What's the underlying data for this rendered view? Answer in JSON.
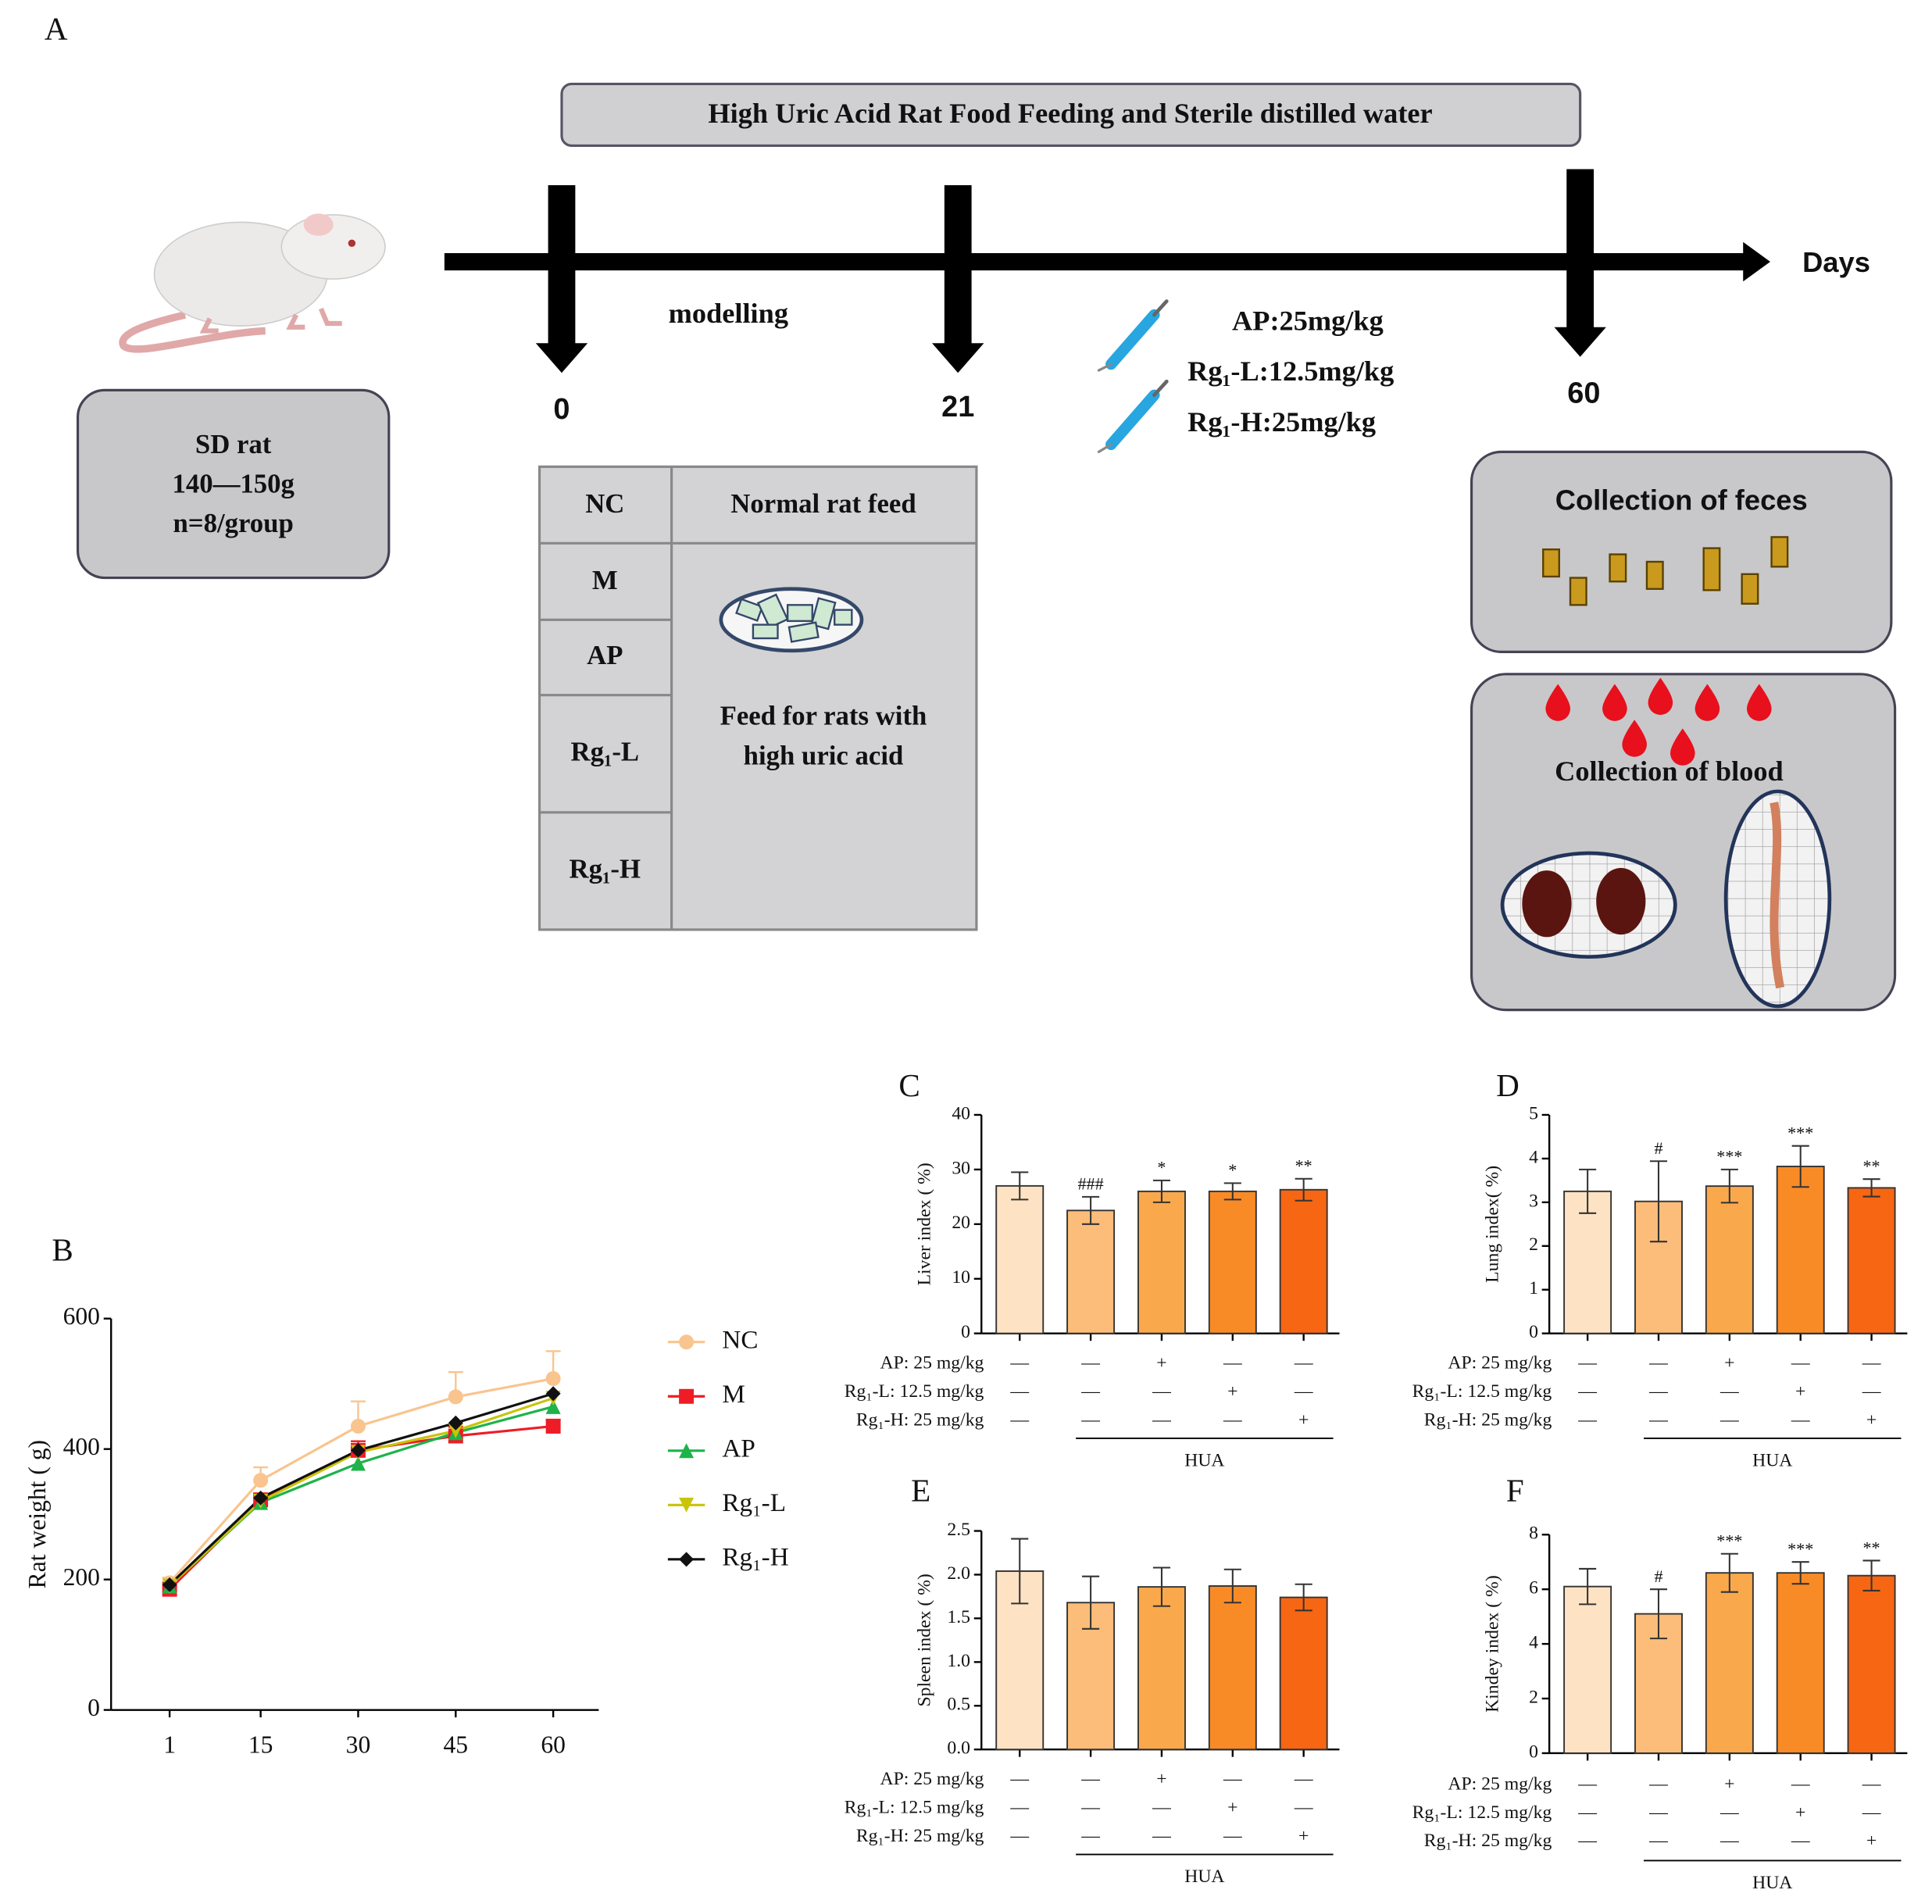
{
  "diagram": {
    "panel_label": "A",
    "banner": "High Uric Acid Rat Food Feeding and Sterile distilled water",
    "axis_label": "Days",
    "timepoints": [
      0,
      21,
      60
    ],
    "modelling": "modelling",
    "rat_box": [
      "SD rat",
      "140—150g",
      "n=8/group"
    ],
    "doses": [
      "AP:25mg/kg",
      "Rg₁-L:12.5mg/kg",
      "Rg₁-H:25mg/kg"
    ],
    "table": {
      "groups": [
        "NC",
        "M",
        "AP",
        "Rg₁-L",
        "Rg₁-H"
      ],
      "normal_feed": "Normal rat feed",
      "high_feed": [
        "Feed for rats with",
        "high uric acid"
      ]
    },
    "feces": "Collection of feces",
    "blood": "Collection of blood"
  },
  "chart_data": [
    {
      "type": "line",
      "panel_label": "B",
      "ylabel": "Rat weight ( g)",
      "x": [
        1,
        15,
        30,
        45,
        60
      ],
      "xlim": [
        -8,
        67
      ],
      "xticks": [
        1,
        15,
        30,
        45,
        60
      ],
      "ylim": [
        0,
        600
      ],
      "yticks": [
        0,
        200,
        400,
        600
      ],
      "series": [
        {
          "name": "NC",
          "color": "#f9c48e",
          "marker": "circle",
          "values": [
            195,
            352,
            435,
            480,
            508
          ],
          "errors": [
            8,
            20,
            38,
            38,
            42
          ]
        },
        {
          "name": "M",
          "color": "#ee1c25",
          "marker": "square",
          "values": [
            185,
            322,
            398,
            420,
            435
          ],
          "errors": [
            4,
            10,
            14,
            14,
            10
          ]
        },
        {
          "name": "AP",
          "color": "#1db34a",
          "marker": "triangle-up",
          "values": [
            190,
            318,
            378,
            425,
            465
          ]
        },
        {
          "name": "Rg₁-L",
          "color": "#c9c30a",
          "marker": "triangle-down",
          "values": [
            190,
            320,
            395,
            428,
            478
          ]
        },
        {
          "name": "Rg₁-H",
          "color": "#111111",
          "marker": "diamond",
          "values": [
            192,
            325,
            398,
            440,
            485
          ]
        }
      ]
    },
    {
      "type": "bar",
      "panel_label": "C",
      "ylabel": "Liver index ( %)",
      "values": [
        27,
        22.5,
        26,
        26,
        26.3
      ],
      "errors": [
        2.5,
        2.5,
        2,
        1.5,
        2
      ],
      "annotations": [
        null,
        "###",
        "*",
        "*",
        "**"
      ],
      "colors": [
        "#fde3c4",
        "#fbbd79",
        "#f9a94c",
        "#f98b26",
        "#f76613"
      ],
      "ylim": [
        0,
        40
      ],
      "yticks": [
        0,
        10,
        20,
        30,
        40
      ],
      "treatments": [
        {
          "label": "AP: 25 mg/kg",
          "marks": [
            "—",
            "—",
            "+",
            "—",
            "—"
          ]
        },
        {
          "label": "Rg₁-L: 12.5 mg/kg",
          "marks": [
            "—",
            "—",
            "—",
            "+",
            "—"
          ]
        },
        {
          "label": "Rg₁-H: 25 mg/kg",
          "marks": [
            "—",
            "—",
            "—",
            "—",
            "+"
          ]
        }
      ],
      "group_label": "HUA"
    },
    {
      "type": "bar",
      "panel_label": "D",
      "ylabel": "Lung index( %)",
      "values": [
        3.25,
        3.02,
        3.37,
        3.82,
        3.33
      ],
      "errors": [
        0.5,
        0.92,
        0.38,
        0.47,
        0.2
      ],
      "annotations": [
        null,
        "#",
        "***",
        "***",
        "**"
      ],
      "colors": [
        "#fde3c4",
        "#fbbd79",
        "#f9a94c",
        "#f98b26",
        "#f76613"
      ],
      "ylim": [
        0,
        5
      ],
      "yticks": [
        0,
        1,
        2,
        3,
        4,
        5
      ],
      "treatments": [
        {
          "label": "AP: 25 mg/kg",
          "marks": [
            "—",
            "—",
            "+",
            "—",
            "—"
          ]
        },
        {
          "label": "Rg₁-L: 12.5 mg/kg",
          "marks": [
            "—",
            "—",
            "—",
            "+",
            "—"
          ]
        },
        {
          "label": "Rg₁-H: 25 mg/kg",
          "marks": [
            "—",
            "—",
            "—",
            "—",
            "+"
          ]
        }
      ],
      "group_label": "HUA"
    },
    {
      "type": "bar",
      "panel_label": "E",
      "ylabel": "Spleen index ( %)",
      "values": [
        2.04,
        1.68,
        1.86,
        1.87,
        1.74
      ],
      "errors": [
        0.37,
        0.3,
        0.22,
        0.19,
        0.15
      ],
      "colors": [
        "#fde3c4",
        "#fbbd79",
        "#f9a94c",
        "#f98b26",
        "#f76613"
      ],
      "ylim": [
        0,
        2.5
      ],
      "yticks": [
        {
          "value": 0,
          "label": "0.0"
        },
        0.5,
        {
          "value": 1,
          "label": "1.0"
        },
        1.5,
        {
          "value": 2,
          "label": "2.0"
        },
        2.5
      ],
      "treatments": [
        {
          "label": "AP: 25 mg/kg",
          "marks": [
            "—",
            "—",
            "+",
            "—",
            "—"
          ]
        },
        {
          "label": "Rg₁-L: 12.5 mg/kg",
          "marks": [
            "—",
            "—",
            "—",
            "+",
            "—"
          ]
        },
        {
          "label": "Rg₁-H: 25 mg/kg",
          "marks": [
            "—",
            "—",
            "—",
            "—",
            "+"
          ]
        }
      ],
      "group_label": "HUA"
    },
    {
      "type": "bar",
      "panel_label": "F",
      "ylabel": "Kindey index ( %)",
      "values": [
        6.1,
        5.1,
        6.6,
        6.6,
        6.5
      ],
      "errors": [
        0.65,
        0.9,
        0.7,
        0.4,
        0.55
      ],
      "annotations": [
        null,
        "#",
        "***",
        "***",
        "**"
      ],
      "colors": [
        "#fde3c4",
        "#fbbd79",
        "#f9a94c",
        "#f98b26",
        "#f76613"
      ],
      "ylim": [
        0,
        8
      ],
      "yticks": [
        0,
        2,
        4,
        6,
        8
      ],
      "treatments": [
        {
          "label": "AP: 25 mg/kg",
          "marks": [
            "—",
            "—",
            "+",
            "—",
            "—"
          ]
        },
        {
          "label": "Rg₁-L: 12.5 mg/kg",
          "marks": [
            "—",
            "—",
            "—",
            "+",
            "—"
          ]
        },
        {
          "label": "Rg₁-H: 25 mg/kg",
          "marks": [
            "—",
            "—",
            "—",
            "—",
            "+"
          ]
        }
      ],
      "group_label": "HUA"
    }
  ]
}
